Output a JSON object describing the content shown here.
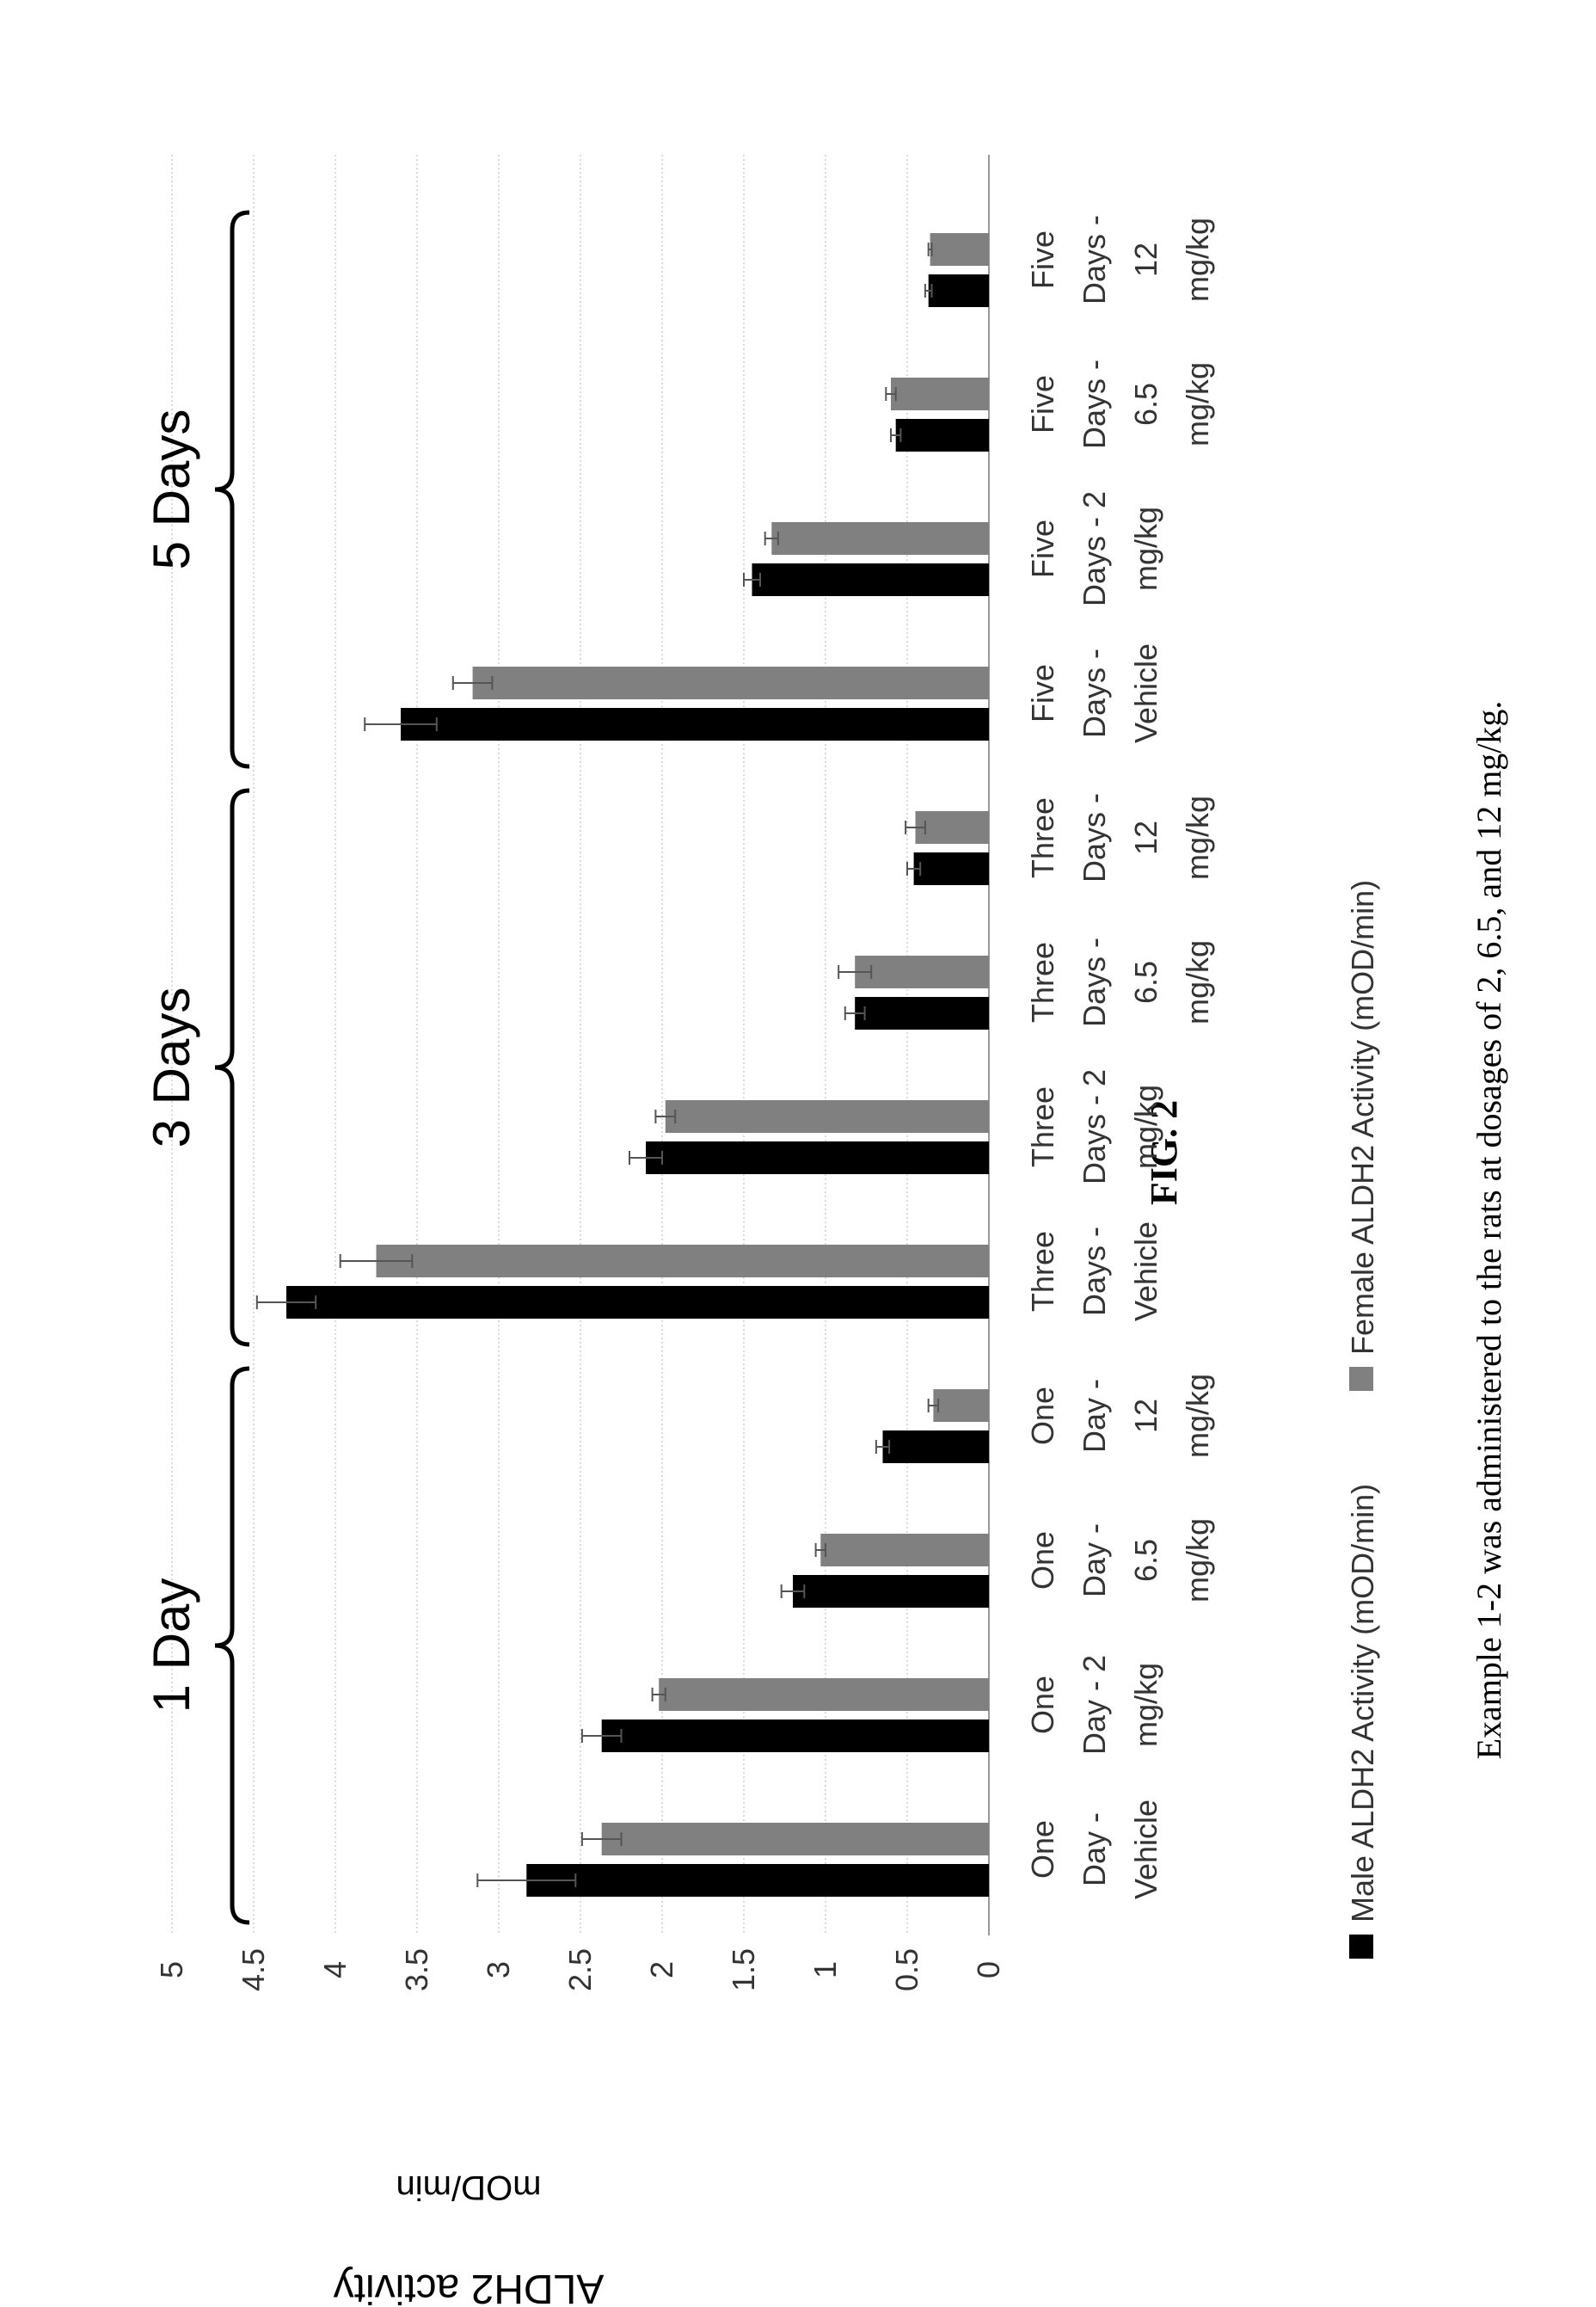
{
  "figure_label": "FIG. 2",
  "caption": "Example 1-2 was administered to the rats at dosages of 2, 6.5, and 12 mg/kg.",
  "chart_data": {
    "type": "bar",
    "orientation": "rotated-90-ccw",
    "ylabel": "mOD/min",
    "ylabel_outer": "ALDH2 activity",
    "ylim": [
      0,
      5
    ],
    "yticks": [
      "0",
      "0.5",
      "1",
      "1.5",
      "2",
      "2.5",
      "3",
      "3.5",
      "4",
      "4.5",
      "5"
    ],
    "grid": true,
    "legend_position": "bottom",
    "categories": [
      [
        "One",
        "Day -",
        "Vehicle"
      ],
      [
        "One",
        "Day - 2",
        "mg/kg"
      ],
      [
        "One",
        "Day -",
        "6.5",
        "mg/kg"
      ],
      [
        "One",
        "Day -",
        "12",
        "mg/kg"
      ],
      [
        "Three",
        "Days -",
        "Vehicle"
      ],
      [
        "Three",
        "Days - 2",
        "mg/kg"
      ],
      [
        "Three",
        "Days -",
        "6.5",
        "mg/kg"
      ],
      [
        "Three",
        "Days -",
        "12",
        "mg/kg"
      ],
      [
        "Five",
        "Days -",
        "Vehicle"
      ],
      [
        "Five",
        "Days - 2",
        "mg/kg"
      ],
      [
        "Five",
        "Days -",
        "6.5",
        "mg/kg"
      ],
      [
        "Five",
        "Days -",
        "12",
        "mg/kg"
      ]
    ],
    "groups": [
      {
        "label": "1 Day",
        "start": 0,
        "end": 3
      },
      {
        "label": "3 Days",
        "start": 4,
        "end": 7
      },
      {
        "label": "5 Days",
        "start": 8,
        "end": 11
      }
    ],
    "series": [
      {
        "name": "Male ALDH2 Activity (mOD/min)",
        "color": "#000000",
        "values": [
          2.83,
          2.37,
          1.2,
          0.65,
          4.3,
          2.1,
          0.82,
          0.46,
          3.6,
          1.45,
          0.57,
          0.37
        ],
        "errors": [
          0.3,
          0.12,
          0.07,
          0.04,
          0.18,
          0.1,
          0.06,
          0.04,
          0.22,
          0.05,
          0.03,
          0.02
        ]
      },
      {
        "name": "Female ALDH2 Activity (mOD/min)",
        "color": "#808080",
        "values": [
          2.37,
          2.02,
          1.03,
          0.34,
          3.75,
          1.98,
          0.82,
          0.45,
          3.16,
          1.33,
          0.6,
          0.36
        ],
        "errors": [
          0.12,
          0.04,
          0.03,
          0.03,
          0.22,
          0.06,
          0.1,
          0.06,
          0.12,
          0.04,
          0.03,
          0.01
        ]
      }
    ]
  }
}
